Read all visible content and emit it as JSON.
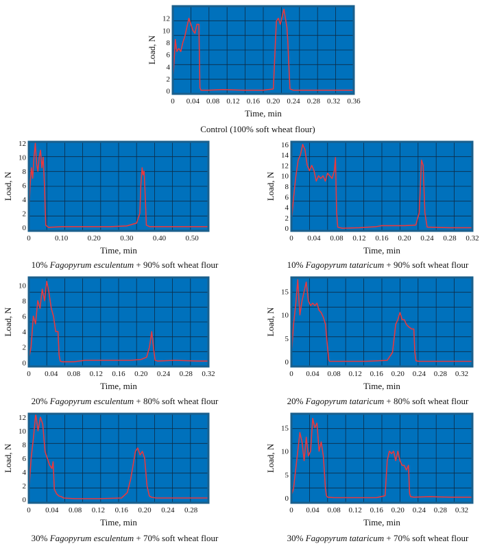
{
  "style": {
    "plot_bg": "#0071bc",
    "frame": "#1a5f8c",
    "grid": "#0d2a45",
    "trace": "#e8393f"
  },
  "chart_data": [
    {
      "type": "line",
      "xlabel": "Time, min",
      "ylabel": "Load, N",
      "xlim": [
        0,
        0.36
      ],
      "ylim": [
        -0.5,
        14
      ],
      "xticks": [
        "0",
        "0.04",
        "0.08",
        "0.12",
        "0.16",
        "0.20",
        "0.24",
        "0.28",
        "0.32",
        "0.36"
      ],
      "xtick_values": [
        0,
        0.04,
        0.08,
        0.12,
        0.16,
        0.2,
        0.24,
        0.28,
        0.32,
        0.36
      ],
      "yticks": [
        "0",
        "2",
        "4",
        "6",
        "8",
        "10",
        "12"
      ],
      "ytick_values": [
        0,
        2,
        4,
        6,
        8,
        10,
        12
      ],
      "grid": true,
      "caption_pre": "Control (100% soft wheat flour)",
      "caption_italic": "",
      "caption_post": "",
      "series": [
        {
          "x": [
            0,
            0.002,
            0.005,
            0.008,
            0.012,
            0.016,
            0.02,
            0.024,
            0.028,
            0.032,
            0.036,
            0.04,
            0.044,
            0.048,
            0.052,
            0.054,
            0.056,
            0.058,
            0.07,
            0.1,
            0.14,
            0.18,
            0.2,
            0.203,
            0.206,
            0.21,
            0.214,
            0.218,
            0.221,
            0.224,
            0.227,
            0.229,
            0.231,
            0.233,
            0.24,
            0.28,
            0.32,
            0.36
          ],
          "y": [
            1.5,
            4,
            8.5,
            6.5,
            7,
            6.5,
            8,
            9,
            10.5,
            12,
            11,
            10,
            9.5,
            11,
            11,
            0.5,
            0.1,
            0.1,
            0.1,
            0.2,
            0.1,
            0.1,
            0.3,
            6,
            11.5,
            12,
            11,
            12.5,
            13.5,
            12,
            10.5,
            8,
            4,
            0.3,
            0.1,
            0.1,
            0.1,
            0.1
          ]
        }
      ]
    },
    {
      "type": "line",
      "xlabel": "Time, min",
      "ylabel": "Load, N",
      "xlim": [
        0,
        0.55
      ],
      "ylim": [
        -0.5,
        12.2
      ],
      "xticks": [
        "0",
        "0.10",
        "0.20",
        "0.30",
        "0.40",
        "0.50"
      ],
      "xtick_values": [
        0,
        0.1,
        0.2,
        0.3,
        0.4,
        0.5
      ],
      "yticks": [
        "0",
        "2",
        "4",
        "6",
        "8",
        "10",
        "12"
      ],
      "ytick_values": [
        0,
        2,
        4,
        6,
        8,
        10,
        12
      ],
      "grid": true,
      "caption_pre": "10% ",
      "caption_italic": "Fagopyrum esculentum",
      "caption_post": " + 90% soft wheat flour",
      "series": [
        {
          "x": [
            0,
            0.004,
            0.008,
            0.012,
            0.016,
            0.02,
            0.024,
            0.028,
            0.032,
            0.036,
            0.04,
            0.044,
            0.048,
            0.05,
            0.052,
            0.06,
            0.1,
            0.15,
            0.2,
            0.25,
            0.3,
            0.33,
            0.34,
            0.343,
            0.347,
            0.35,
            0.353,
            0.356,
            0.36,
            0.37,
            0.4,
            0.45,
            0.5,
            0.55
          ],
          "y": [
            2,
            6,
            8.5,
            7,
            10,
            12,
            9,
            8,
            10,
            11,
            8.5,
            10,
            6,
            3,
            0.3,
            0,
            0.1,
            0.1,
            0.1,
            0.1,
            0.2,
            0.6,
            2,
            6,
            8.5,
            7.5,
            8,
            5,
            0.3,
            0.1,
            0.1,
            0.1,
            0.1,
            0.1
          ]
        }
      ]
    },
    {
      "type": "line",
      "xlabel": "Time, min",
      "ylabel": "Load, N",
      "xlim": [
        0,
        0.32
      ],
      "ylim": [
        -0.5,
        16.5
      ],
      "xticks": [
        "0",
        "0.04",
        "0.08",
        "0.12",
        "0.16",
        "0.20",
        "0.24",
        "0.28",
        "0.32"
      ],
      "xtick_values": [
        0,
        0.04,
        0.08,
        0.12,
        0.16,
        0.2,
        0.24,
        0.28,
        0.32
      ],
      "yticks": [
        "0",
        "2",
        "4",
        "6",
        "8",
        "10",
        "12",
        "14",
        "16"
      ],
      "ytick_values": [
        0,
        2,
        4,
        6,
        8,
        10,
        12,
        14,
        16
      ],
      "grid": true,
      "caption_pre": "10% ",
      "caption_italic": "Fagopyrum tataricum",
      "caption_post": " + 90% soft wheat flour",
      "series": [
        {
          "x": [
            0,
            0.004,
            0.008,
            0.012,
            0.016,
            0.02,
            0.024,
            0.028,
            0.032,
            0.036,
            0.04,
            0.044,
            0.048,
            0.052,
            0.056,
            0.06,
            0.064,
            0.068,
            0.072,
            0.076,
            0.078,
            0.08,
            0.082,
            0.09,
            0.12,
            0.15,
            0.16,
            0.2,
            0.22,
            0.226,
            0.23,
            0.233,
            0.236,
            0.24,
            0.28,
            0.32
          ],
          "y": [
            1,
            6,
            10,
            13,
            14,
            16,
            15,
            12,
            11,
            12,
            11,
            9,
            10,
            9.5,
            10,
            9,
            10.5,
            10,
            9.5,
            11,
            13.5,
            3,
            0.2,
            0,
            0.1,
            0.3,
            0.5,
            0.5,
            0.6,
            3,
            13,
            12,
            3,
            0.2,
            0.1,
            0.1
          ]
        }
      ]
    },
    {
      "type": "line",
      "xlabel": "Time, min",
      "ylabel": "Load, N",
      "xlim": [
        0,
        0.32
      ],
      "ylim": [
        -0.5,
        11
      ],
      "xticks": [
        "0",
        "0.04",
        "0.08",
        "0.12",
        "0.16",
        "0.20",
        "0.24",
        "0.28",
        "0.32"
      ],
      "xtick_values": [
        0,
        0.04,
        0.08,
        0.12,
        0.16,
        0.2,
        0.24,
        0.28,
        0.32
      ],
      "yticks": [
        "0",
        "2",
        "4",
        "6",
        "8",
        "10"
      ],
      "ytick_values": [
        0,
        2,
        4,
        6,
        8,
        10
      ],
      "grid": true,
      "caption_pre": "20% ",
      "caption_italic": "Fagopyrum esculentum",
      "caption_post": " + 80% soft wheat flour",
      "series": [
        {
          "x": [
            0,
            0.004,
            0.008,
            0.012,
            0.016,
            0.02,
            0.024,
            0.028,
            0.032,
            0.036,
            0.04,
            0.044,
            0.048,
            0.052,
            0.054,
            0.056,
            0.06,
            0.08,
            0.1,
            0.14,
            0.18,
            0.2,
            0.21,
            0.215,
            0.219,
            0.222,
            0.225,
            0.23,
            0.26,
            0.3,
            0.32
          ],
          "y": [
            0.5,
            2,
            6,
            5,
            8,
            7,
            9.5,
            8,
            10.5,
            9,
            7,
            6,
            4,
            4,
            1,
            0.2,
            0.1,
            0.1,
            0.3,
            0.3,
            0.3,
            0.4,
            0.7,
            2,
            4,
            2,
            0.3,
            0.2,
            0.3,
            0.2,
            0.2
          ]
        }
      ]
    },
    {
      "type": "line",
      "xlabel": "Time, min",
      "ylabel": "Load, N",
      "xlim": [
        0,
        0.34
      ],
      "ylim": [
        -1,
        18
      ],
      "xticks": [
        "0",
        "0.04",
        "0.08",
        "0.12",
        "0.16",
        "0.20",
        "0.24",
        "0.28",
        "0.32"
      ],
      "xtick_values": [
        0,
        0.04,
        0.08,
        0.12,
        0.16,
        0.2,
        0.24,
        0.28,
        0.32
      ],
      "yticks": [
        "0",
        "5",
        "10",
        "15"
      ],
      "ytick_values": [
        0,
        5,
        10,
        15
      ],
      "grid": true,
      "caption_pre": "20% ",
      "caption_italic": "Fagopyrum tataricum",
      "caption_post": " + 80% soft wheat flour",
      "series": [
        {
          "x": [
            0,
            0.004,
            0.008,
            0.012,
            0.016,
            0.02,
            0.024,
            0.028,
            0.032,
            0.036,
            0.04,
            0.044,
            0.048,
            0.052,
            0.056,
            0.06,
            0.064,
            0.068,
            0.07,
            0.072,
            0.076,
            0.08,
            0.1,
            0.14,
            0.18,
            0.19,
            0.196,
            0.2,
            0.204,
            0.208,
            0.212,
            0.216,
            0.22,
            0.226,
            0.23,
            0.232,
            0.234,
            0.24,
            0.28,
            0.32,
            0.34
          ],
          "y": [
            1,
            8,
            12,
            17.5,
            10,
            13,
            15,
            17,
            13,
            12,
            12.5,
            12,
            12.5,
            11,
            10.5,
            9.5,
            8,
            3,
            0.5,
            0.1,
            0.1,
            0.1,
            0.1,
            0.1,
            0.3,
            2,
            8,
            9,
            10.5,
            9,
            9,
            8,
            7.5,
            7,
            7,
            2,
            0.2,
            0.1,
            0.1,
            0.1,
            0.1
          ]
        }
      ]
    },
    {
      "type": "line",
      "xlabel": "Time, min",
      "ylabel": "Load, N",
      "xlim": [
        0,
        0.31
      ],
      "ylim": [
        -0.5,
        12.5
      ],
      "xticks": [
        "0",
        "0.04",
        "0.08",
        "0.12",
        "0.16",
        "0.20",
        "0.24",
        "0.28"
      ],
      "xtick_values": [
        0,
        0.04,
        0.08,
        0.12,
        0.16,
        0.2,
        0.24,
        0.28
      ],
      "yticks": [
        "0",
        "2",
        "4",
        "6",
        "8",
        "10",
        "12"
      ],
      "ytick_values": [
        0,
        2,
        4,
        6,
        8,
        10,
        12
      ],
      "grid": true,
      "caption_pre": "30% ",
      "caption_italic": "Fagopyrum esculentum",
      "caption_post": " + 70% soft wheat flour",
      "series": [
        {
          "x": [
            0,
            0.004,
            0.008,
            0.012,
            0.016,
            0.02,
            0.024,
            0.028,
            0.032,
            0.036,
            0.04,
            0.042,
            0.044,
            0.048,
            0.052,
            0.056,
            0.06,
            0.08,
            0.12,
            0.16,
            0.17,
            0.176,
            0.18,
            0.184,
            0.188,
            0.192,
            0.196,
            0.2,
            0.204,
            0.208,
            0.212,
            0.22,
            0.24,
            0.28,
            0.31
          ],
          "y": [
            1,
            6,
            9,
            12.5,
            10,
            12,
            11,
            7,
            6,
            5,
            4.5,
            5.5,
            1.5,
            0.8,
            0.5,
            0.4,
            0.2,
            0.1,
            0.1,
            0.2,
            1,
            3,
            5,
            7,
            7.5,
            6.5,
            7,
            6,
            2,
            0.5,
            0.3,
            0.2,
            0.2,
            0.2,
            0.2
          ]
        }
      ]
    },
    {
      "type": "line",
      "xlabel": "Time, min",
      "ylabel": "Load, N",
      "xlim": [
        0,
        0.34
      ],
      "ylim": [
        -1,
        18
      ],
      "xticks": [
        "0",
        "0.04",
        "0.08",
        "0.12",
        "0.16",
        "0.20",
        "0.24",
        "0.28",
        "0.32"
      ],
      "xtick_values": [
        0,
        0.04,
        0.08,
        0.12,
        0.16,
        0.2,
        0.24,
        0.28,
        0.32
      ],
      "yticks": [
        "0",
        "5",
        "10",
        "15"
      ],
      "ytick_values": [
        0,
        5,
        10,
        15
      ],
      "grid": true,
      "caption_pre": "30% ",
      "caption_italic": "Fagopyrum tataricum",
      "caption_post": " + 70% soft wheat flour",
      "series": [
        {
          "x": [
            0,
            0.004,
            0.008,
            0.012,
            0.016,
            0.02,
            0.024,
            0.028,
            0.032,
            0.036,
            0.04,
            0.044,
            0.048,
            0.052,
            0.056,
            0.06,
            0.064,
            0.066,
            0.068,
            0.08,
            0.12,
            0.16,
            0.176,
            0.18,
            0.184,
            0.188,
            0.192,
            0.196,
            0.2,
            0.204,
            0.208,
            0.212,
            0.216,
            0.22,
            0.222,
            0.224,
            0.23,
            0.26,
            0.3,
            0.34
          ],
          "y": [
            0.5,
            2,
            6,
            10,
            14,
            12,
            8,
            13,
            9,
            10,
            17,
            15,
            16,
            10,
            12,
            9,
            2,
            0.5,
            0.2,
            0.1,
            0.1,
            0.1,
            0.5,
            8,
            10,
            9.5,
            10,
            8,
            10,
            8,
            7,
            7,
            6,
            7,
            1,
            0.3,
            0.2,
            0.3,
            0.2,
            0.2
          ]
        }
      ]
    }
  ]
}
